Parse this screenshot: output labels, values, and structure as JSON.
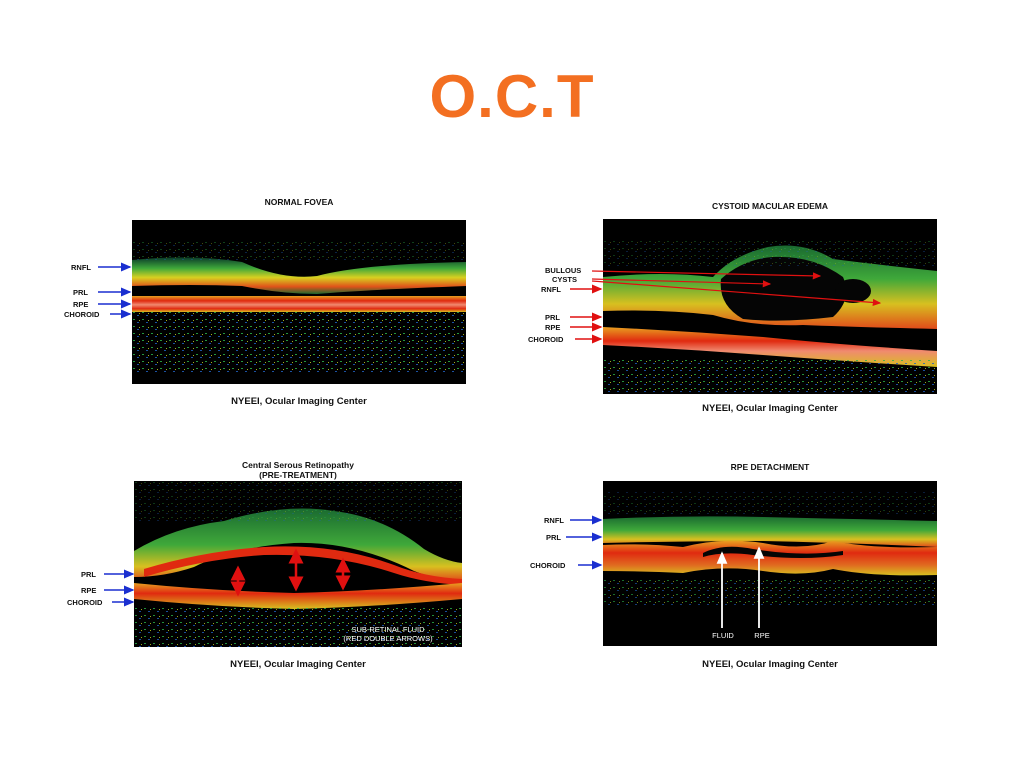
{
  "slide": {
    "title": "O.C.T"
  },
  "panels": {
    "normal": {
      "heading": "NORMAL FOVEA",
      "credit": "NYEEI, Ocular Imaging Center",
      "labels": {
        "rnfl": "RNFL",
        "prl": "PRL",
        "rpe": "RPE",
        "choroid": "CHOROID"
      }
    },
    "cme": {
      "heading": "CYSTOID MACULAR EDEMA",
      "credit": "NYEEI, Ocular Imaging Center",
      "labels": {
        "bullous": "BULLOUS",
        "cysts": "CYSTS",
        "rnfl": "RNFL",
        "prl": "PRL",
        "rpe": "RPE",
        "choroid": "CHOROID"
      }
    },
    "csr": {
      "heading_line1": "Central Serous Retinopathy",
      "heading_line2": "(PRE-TREATMENT)",
      "credit": "NYEEI, Ocular Imaging Center",
      "labels": {
        "prl": "PRL",
        "rpe": "RPE",
        "choroid": "CHOROID"
      },
      "note_line1": "SUB-RETINAL FLUID",
      "note_line2": "(RED DOUBLE ARROWS)"
    },
    "rped": {
      "heading": "RPE DETACHMENT",
      "credit": "NYEEI, Ocular Imaging Center",
      "labels": {
        "rnfl": "RNFL",
        "prl": "PRL",
        "choroid": "CHOROID",
        "fluid": "FLUID",
        "rpe": "RPE"
      }
    }
  },
  "colors": {
    "title": "#f36f21",
    "label_arrow": "#1a2fd0",
    "cme_arrow": "#e01010",
    "fluid_arrow": "#e01010"
  }
}
